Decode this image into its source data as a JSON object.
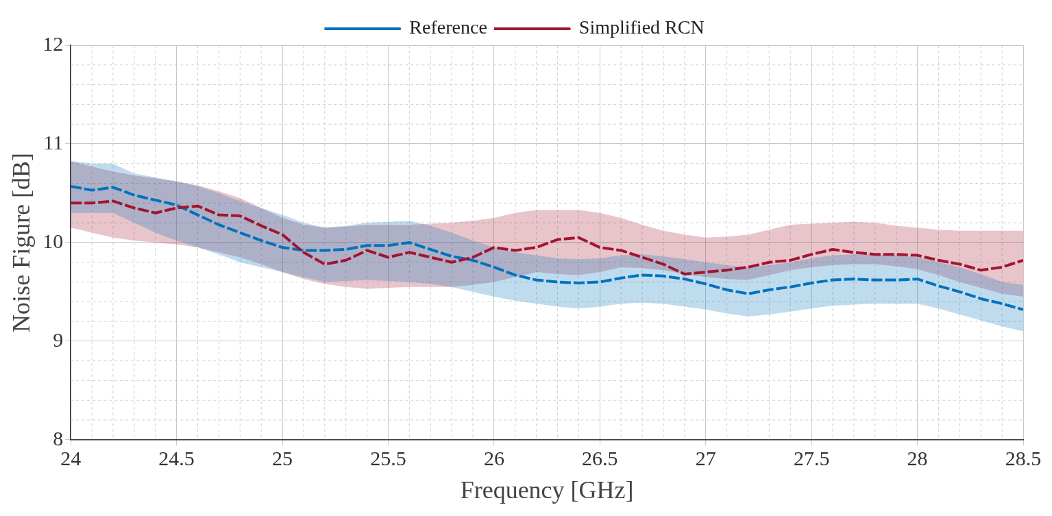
{
  "chart_data": {
    "type": "line",
    "xlabel": "Frequency [GHz]",
    "ylabel": "Noise Figure [dB]",
    "xlim": [
      24,
      28.5
    ],
    "xticks": [
      24,
      24.5,
      25,
      25.5,
      26,
      26.5,
      27,
      27.5,
      28,
      28.5
    ],
    "ylim": [
      8,
      12
    ],
    "yticks": [
      8,
      9,
      10,
      11,
      12
    ],
    "grid": true,
    "legend": "top",
    "marker": "none",
    "x": [
      24,
      24.1,
      24.2,
      24.3,
      24.4,
      24.5,
      24.6,
      24.7,
      24.8,
      24.9,
      25,
      25.1,
      25.2,
      25.3,
      25.4,
      25.5,
      25.6,
      25.7,
      25.8,
      25.9,
      26,
      26.1,
      26.2,
      26.3,
      26.4,
      26.5,
      26.6,
      26.7,
      26.8,
      26.9,
      27,
      27.1,
      27.2,
      27.3,
      27.4,
      27.5,
      27.6,
      27.7,
      27.8,
      27.9,
      28,
      28.1,
      28.2,
      28.3,
      28.4,
      28.5
    ],
    "series": [
      {
        "name": "Reference",
        "color": "#0072bd",
        "line_style": "dashed",
        "values": [
          10.57,
          10.53,
          10.56,
          10.48,
          10.43,
          10.38,
          10.28,
          10.18,
          10.1,
          10.02,
          9.95,
          9.92,
          9.92,
          9.93,
          9.97,
          9.97,
          10.0,
          9.93,
          9.86,
          9.82,
          9.75,
          9.67,
          9.62,
          9.6,
          9.59,
          9.6,
          9.64,
          9.67,
          9.66,
          9.63,
          9.58,
          9.52,
          9.48,
          9.52,
          9.55,
          9.59,
          9.62,
          9.63,
          9.62,
          9.62,
          9.63,
          9.56,
          9.5,
          9.43,
          9.38,
          9.32
        ],
        "lower": [
          10.3,
          10.3,
          10.3,
          10.2,
          10.1,
          10.02,
          9.95,
          9.88,
          9.8,
          9.75,
          9.7,
          9.65,
          9.6,
          9.61,
          9.62,
          9.61,
          9.6,
          9.58,
          9.55,
          9.5,
          9.45,
          9.41,
          9.38,
          9.35,
          9.33,
          9.35,
          9.38,
          9.39,
          9.38,
          9.35,
          9.32,
          9.28,
          9.25,
          9.27,
          9.3,
          9.33,
          9.36,
          9.37,
          9.38,
          9.38,
          9.38,
          9.33,
          9.27,
          9.21,
          9.15,
          9.1
        ],
        "upper": [
          10.83,
          10.8,
          10.8,
          10.7,
          10.66,
          10.62,
          10.57,
          10.5,
          10.42,
          10.35,
          10.28,
          10.2,
          10.15,
          10.17,
          10.2,
          10.21,
          10.22,
          10.17,
          10.1,
          10.02,
          9.95,
          9.9,
          9.87,
          9.84,
          9.83,
          9.84,
          9.87,
          9.88,
          9.86,
          9.83,
          9.8,
          9.77,
          9.75,
          9.77,
          9.8,
          9.84,
          9.87,
          9.88,
          9.88,
          9.87,
          9.85,
          9.8,
          9.75,
          9.68,
          9.6,
          9.57
        ]
      },
      {
        "name": "Simplified RCN",
        "color": "#a2142f",
        "line_style": "dashed",
        "values": [
          10.4,
          10.4,
          10.42,
          10.35,
          10.3,
          10.35,
          10.37,
          10.28,
          10.27,
          10.17,
          10.08,
          9.9,
          9.78,
          9.82,
          9.92,
          9.85,
          9.9,
          9.85,
          9.8,
          9.85,
          9.95,
          9.92,
          9.95,
          10.03,
          10.05,
          9.95,
          9.92,
          9.85,
          9.78,
          9.68,
          9.7,
          9.72,
          9.75,
          9.8,
          9.82,
          9.88,
          9.93,
          9.9,
          9.88,
          9.88,
          9.87,
          9.82,
          9.78,
          9.72,
          9.75,
          9.82
        ],
        "lower": [
          10.15,
          10.1,
          10.05,
          10.02,
          10.0,
          9.98,
          9.95,
          9.9,
          9.85,
          9.78,
          9.7,
          9.63,
          9.58,
          9.55,
          9.53,
          9.54,
          9.55,
          9.55,
          9.55,
          9.57,
          9.6,
          9.65,
          9.7,
          9.68,
          9.67,
          9.7,
          9.75,
          9.74,
          9.72,
          9.68,
          9.65,
          9.63,
          9.62,
          9.67,
          9.72,
          9.75,
          9.77,
          9.78,
          9.78,
          9.76,
          9.73,
          9.67,
          9.6,
          9.54,
          9.48,
          9.45
        ],
        "upper": [
          10.82,
          10.77,
          10.72,
          10.68,
          10.65,
          10.62,
          10.58,
          10.52,
          10.45,
          10.35,
          10.25,
          10.18,
          10.15,
          10.16,
          10.18,
          10.18,
          10.18,
          10.19,
          10.2,
          10.22,
          10.25,
          10.3,
          10.33,
          10.33,
          10.33,
          10.3,
          10.25,
          10.18,
          10.12,
          10.08,
          10.05,
          10.06,
          10.08,
          10.13,
          10.18,
          10.19,
          10.2,
          10.21,
          10.2,
          10.17,
          10.15,
          10.13,
          10.12,
          10.12,
          10.12,
          10.12
        ]
      }
    ]
  }
}
